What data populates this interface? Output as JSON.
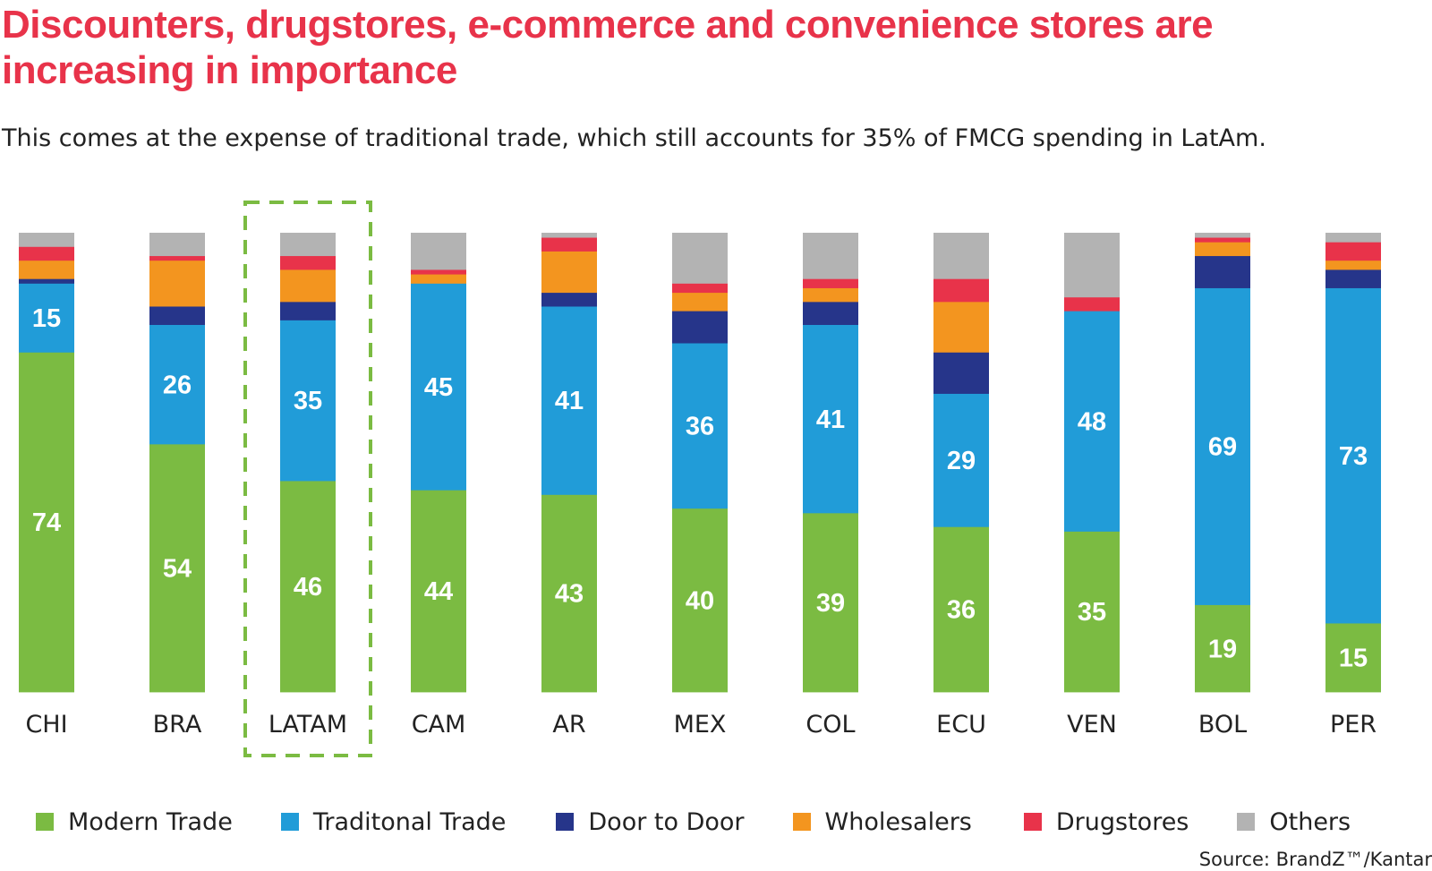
{
  "title": "Discounters, drugstores, e-commerce and convenience stores are increasing in importance",
  "subtitle": "This comes at the expense of traditional trade, which still accounts for 35% of FMCG spending in LatAm.",
  "source": "Source: BrandZ™/Kantar",
  "colors": {
    "Modern Trade": "#7bbb42",
    "Traditonal Trade": "#219cd8",
    "Door to Door": "#26358a",
    "Wholesalers": "#f3951f",
    "Drugstores": "#e8334a",
    "Others": "#b3b3b3",
    "highlight": "#7bbb42"
  },
  "chart_data": {
    "type": "bar",
    "stacked": true,
    "unit": "%",
    "ylim": [
      0,
      100
    ],
    "categories": [
      "CHI",
      "BRA",
      "LATAM",
      "CAM",
      "AR",
      "MEX",
      "COL",
      "ECU",
      "VEN",
      "BOL",
      "PER"
    ],
    "highlighted_category": "LATAM",
    "series": [
      {
        "name": "Modern Trade",
        "values": [
          74,
          54,
          46,
          44,
          43,
          40,
          39,
          36,
          35,
          19,
          15
        ]
      },
      {
        "name": "Traditonal Trade",
        "values": [
          15,
          26,
          35,
          45,
          41,
          36,
          41,
          29,
          48,
          69,
          73
        ]
      },
      {
        "name": "Door to Door",
        "values": [
          1,
          4,
          4,
          0,
          3,
          7,
          5,
          9,
          0,
          7,
          4
        ]
      },
      {
        "name": "Wholesalers",
        "values": [
          4,
          10,
          7,
          2,
          9,
          4,
          3,
          11,
          0,
          3,
          2
        ]
      },
      {
        "name": "Drugstores",
        "values": [
          3,
          1,
          3,
          1,
          3,
          2,
          2,
          5,
          3,
          1,
          4
        ]
      },
      {
        "name": "Others",
        "values": [
          3,
          5,
          5,
          8,
          1,
          11,
          10,
          10,
          14,
          1,
          2
        ]
      }
    ],
    "value_labels_shown_for": [
      "Modern Trade",
      "Traditonal Trade"
    ],
    "legend": [
      "Modern Trade",
      "Traditonal Trade",
      "Door to Door",
      "Wholesalers",
      "Drugstores",
      "Others"
    ],
    "legend_position": "bottom"
  }
}
